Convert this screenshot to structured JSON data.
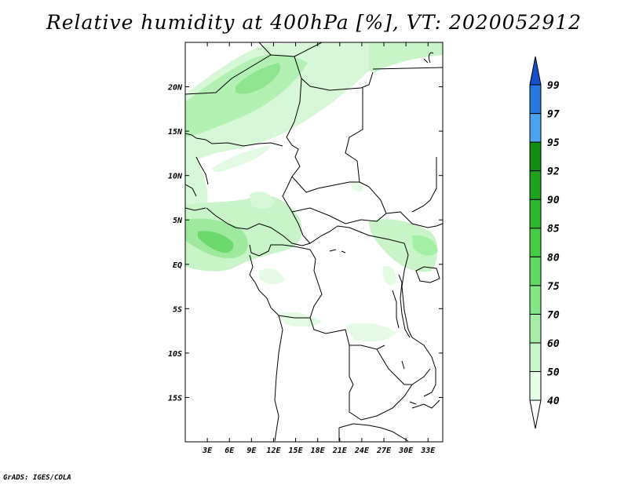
{
  "title": "Relative humidity at 400hPa [%], VT: 2020052912",
  "credit": "GrADS: IGES/COLA",
  "chart_data": {
    "type": "heatmap",
    "title": "Relative humidity at 400hPa [%], VT: 2020052912",
    "lon_range": [
      0,
      35
    ],
    "lat_range": [
      -20,
      25
    ],
    "x_ticks": [
      "3E",
      "6E",
      "9E",
      "12E",
      "15E",
      "18E",
      "21E",
      "24E",
      "27E",
      "30E",
      "33E"
    ],
    "x_tick_values": [
      3,
      6,
      9,
      12,
      15,
      18,
      21,
      24,
      27,
      30,
      33
    ],
    "y_ticks": [
      "20N",
      "15N",
      "10N",
      "5N",
      "EQ",
      "5S",
      "10S",
      "15S"
    ],
    "y_tick_values": [
      20,
      15,
      10,
      5,
      0,
      -5,
      -10,
      -15
    ],
    "colorbar": {
      "levels": [
        "40",
        "50",
        "60",
        "70",
        "75",
        "80",
        "85",
        "90",
        "92",
        "95",
        "97",
        "99"
      ],
      "colors": [
        "#ffffff",
        "#e6ffe6",
        "#c8f7c8",
        "#a5eea5",
        "#84e684",
        "#62d962",
        "#45cc45",
        "#2eb82e",
        "#1fa31f",
        "#118c11",
        "#4ca0f0",
        "#2878e0",
        "#1450c8"
      ]
    }
  }
}
